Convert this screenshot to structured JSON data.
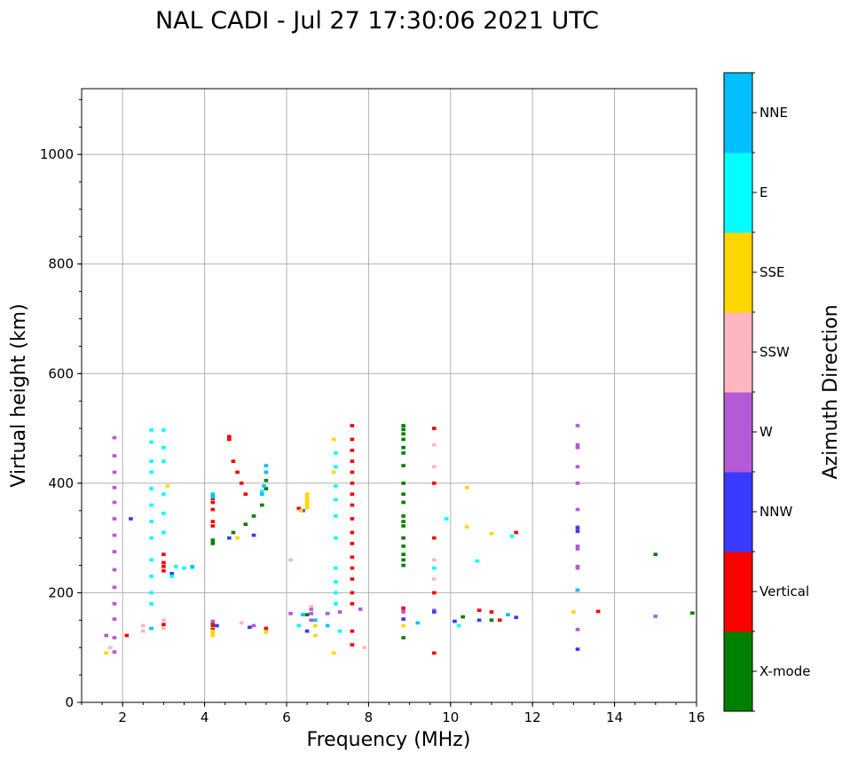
{
  "chart_data": {
    "type": "scatter",
    "title": "NAL CADI - Jul 27 17:30:06 2021 UTC",
    "xlabel": "Frequency (MHz)",
    "ylabel": "Virtual height (km)",
    "xlim": [
      1,
      16
    ],
    "ylim": [
      0,
      1120
    ],
    "xticks": [
      "2",
      "4",
      "6",
      "8",
      "10",
      "12",
      "14",
      "16"
    ],
    "yticks": [
      "0",
      "200",
      "400",
      "600",
      "800",
      "1000"
    ],
    "grid": true,
    "colorbar": {
      "title": "Azimuth Direction",
      "categories": [
        {
          "name": "X-mode",
          "color": "#008000"
        },
        {
          "name": "Vertical",
          "color": "#ff0000"
        },
        {
          "name": "NNW",
          "color": "#3a3aff"
        },
        {
          "name": "W",
          "color": "#b45ad6"
        },
        {
          "name": "SSW",
          "color": "#ffb6c1"
        },
        {
          "name": "SSE",
          "color": "#ffd700"
        },
        {
          "name": "E",
          "color": "#00ffff"
        },
        {
          "name": "NNE",
          "color": "#00bfff"
        }
      ]
    },
    "series": [
      {
        "name": "W",
        "points": [
          [
            1.8,
            483
          ],
          [
            1.8,
            450
          ],
          [
            1.8,
            420
          ],
          [
            1.8,
            392
          ],
          [
            1.8,
            365
          ],
          [
            1.8,
            335
          ],
          [
            1.8,
            305
          ],
          [
            1.8,
            275
          ],
          [
            1.8,
            242
          ],
          [
            1.8,
            210
          ],
          [
            1.8,
            180
          ],
          [
            1.8,
            152
          ],
          [
            1.8,
            118
          ],
          [
            1.8,
            92
          ],
          [
            1.6,
            122
          ],
          [
            6.1,
            162
          ],
          [
            6.6,
            170
          ],
          [
            6.6,
            162
          ],
          [
            6.6,
            150
          ],
          [
            7.0,
            162
          ],
          [
            7.3,
            165
          ],
          [
            7.8,
            170
          ],
          [
            8.85,
            165
          ],
          [
            8.85,
            170
          ],
          [
            9.6,
            168
          ],
          [
            13.1,
            505
          ],
          [
            13.1,
            470
          ],
          [
            13.1,
            465
          ],
          [
            13.1,
            430
          ],
          [
            13.1,
            400
          ],
          [
            13.1,
            352
          ],
          [
            13.1,
            320
          ],
          [
            13.1,
            285
          ],
          [
            13.1,
            280
          ],
          [
            13.1,
            248
          ],
          [
            13.1,
            245
          ],
          [
            13.1,
            205
          ],
          [
            13.1,
            133
          ],
          [
            15.0,
            157
          ],
          [
            4.2,
            148
          ],
          [
            5.2,
            140
          ]
        ]
      },
      {
        "name": "X-mode",
        "points": [
          [
            8.85,
            505
          ],
          [
            8.85,
            498
          ],
          [
            8.85,
            490
          ],
          [
            8.85,
            480
          ],
          [
            8.85,
            465
          ],
          [
            8.85,
            455
          ],
          [
            8.85,
            432
          ],
          [
            8.85,
            400
          ],
          [
            8.85,
            380
          ],
          [
            8.85,
            365
          ],
          [
            8.85,
            340
          ],
          [
            8.85,
            330
          ],
          [
            8.85,
            322
          ],
          [
            8.85,
            300
          ],
          [
            8.85,
            285
          ],
          [
            8.85,
            270
          ],
          [
            8.85,
            260
          ],
          [
            8.85,
            250
          ],
          [
            8.85,
            118
          ],
          [
            15.0,
            270
          ],
          [
            15.9,
            163
          ],
          [
            4.2,
            296
          ],
          [
            4.2,
            290
          ],
          [
            4.7,
            310
          ],
          [
            5.0,
            325
          ],
          [
            5.2,
            340
          ],
          [
            5.4,
            360
          ],
          [
            5.5,
            390
          ],
          [
            5.5,
            405
          ],
          [
            10.3,
            156
          ],
          [
            11.0,
            150
          ],
          [
            6.5,
            160
          ],
          [
            4.2,
            140
          ]
        ]
      },
      {
        "name": "Vertical",
        "points": [
          [
            4.2,
            330
          ],
          [
            4.2,
            322
          ],
          [
            4.2,
            352
          ],
          [
            4.2,
            365
          ],
          [
            4.2,
            372
          ],
          [
            4.2,
            142
          ],
          [
            4.2,
            133
          ],
          [
            3.0,
            248
          ],
          [
            3.0,
            240
          ],
          [
            3.0,
            255
          ],
          [
            3.0,
            270
          ],
          [
            4.6,
            480
          ],
          [
            4.6,
            485
          ],
          [
            4.7,
            440
          ],
          [
            4.8,
            420
          ],
          [
            4.9,
            400
          ],
          [
            5.0,
            380
          ],
          [
            7.6,
            505
          ],
          [
            7.6,
            480
          ],
          [
            7.6,
            460
          ],
          [
            7.6,
            440
          ],
          [
            7.6,
            420
          ],
          [
            7.6,
            400
          ],
          [
            7.6,
            380
          ],
          [
            7.6,
            360
          ],
          [
            7.6,
            335
          ],
          [
            7.6,
            310
          ],
          [
            7.6,
            290
          ],
          [
            7.6,
            265
          ],
          [
            7.6,
            245
          ],
          [
            7.6,
            225
          ],
          [
            7.6,
            200
          ],
          [
            7.6,
            180
          ],
          [
            7.6,
            130
          ],
          [
            7.6,
            105
          ],
          [
            9.6,
            500
          ],
          [
            9.6,
            400
          ],
          [
            9.6,
            300
          ],
          [
            9.6,
            200
          ],
          [
            9.6,
            90
          ],
          [
            10.7,
            168
          ],
          [
            11.0,
            165
          ],
          [
            11.2,
            150
          ],
          [
            11.6,
            310
          ],
          [
            8.85,
            172
          ],
          [
            13.6,
            166
          ],
          [
            3.0,
            142
          ],
          [
            5.5,
            135
          ],
          [
            2.1,
            122
          ],
          [
            6.3,
            354
          ]
        ]
      },
      {
        "name": "NNW",
        "points": [
          [
            13.1,
            97
          ],
          [
            13.1,
            318
          ],
          [
            13.1,
            312
          ],
          [
            3.2,
            235
          ],
          [
            2.2,
            335
          ],
          [
            4.3,
            140
          ],
          [
            5.1,
            137
          ],
          [
            6.5,
            130
          ],
          [
            8.85,
            152
          ],
          [
            9.6,
            165
          ],
          [
            10.1,
            148
          ],
          [
            10.7,
            150
          ],
          [
            11.6,
            155
          ],
          [
            4.6,
            300
          ],
          [
            5.2,
            305
          ],
          [
            6.4,
            350
          ]
        ]
      },
      {
        "name": "SSE",
        "points": [
          [
            6.5,
            380
          ],
          [
            6.5,
            375
          ],
          [
            6.5,
            370
          ],
          [
            6.5,
            365
          ],
          [
            6.5,
            360
          ],
          [
            6.5,
            355
          ],
          [
            6.35,
            350
          ],
          [
            4.2,
            125
          ],
          [
            4.2,
            122
          ],
          [
            4.2,
            130
          ],
          [
            5.5,
            128
          ],
          [
            6.7,
            122
          ],
          [
            6.7,
            140
          ],
          [
            7.15,
            90
          ],
          [
            7.15,
            480
          ],
          [
            7.15,
            420
          ],
          [
            13.0,
            165
          ],
          [
            8.85,
            140
          ],
          [
            10.4,
            392
          ],
          [
            10.4,
            320
          ],
          [
            11.0,
            308
          ],
          [
            3.1,
            395
          ],
          [
            1.6,
            90
          ],
          [
            4.8,
            300
          ]
        ]
      },
      {
        "name": "E",
        "points": [
          [
            2.7,
            497
          ],
          [
            2.7,
            475
          ],
          [
            2.7,
            440
          ],
          [
            2.7,
            420
          ],
          [
            2.7,
            390
          ],
          [
            2.7,
            360
          ],
          [
            2.7,
            330
          ],
          [
            2.7,
            300
          ],
          [
            2.7,
            260
          ],
          [
            2.7,
            230
          ],
          [
            2.7,
            200
          ],
          [
            2.7,
            180
          ],
          [
            3.0,
            497
          ],
          [
            3.0,
            465
          ],
          [
            3.0,
            440
          ],
          [
            3.0,
            380
          ],
          [
            3.0,
            345
          ],
          [
            3.0,
            310
          ],
          [
            3.3,
            248
          ],
          [
            3.5,
            245
          ],
          [
            3.7,
            246
          ],
          [
            3.2,
            230
          ],
          [
            7.3,
            130
          ],
          [
            6.3,
            140
          ],
          [
            7.2,
            455
          ],
          [
            7.2,
            430
          ],
          [
            7.2,
            395
          ],
          [
            7.2,
            370
          ],
          [
            7.2,
            340
          ],
          [
            7.2,
            300
          ],
          [
            7.2,
            245
          ],
          [
            7.2,
            220
          ],
          [
            7.2,
            200
          ],
          [
            7.2,
            180
          ],
          [
            10.65,
            258
          ],
          [
            11.5,
            303
          ],
          [
            10.2,
            140
          ],
          [
            9.9,
            335
          ],
          [
            9.6,
            245
          ],
          [
            5.5,
            420
          ],
          [
            5.4,
            385
          ]
        ]
      },
      {
        "name": "NNE",
        "points": [
          [
            5.5,
            432
          ],
          [
            5.5,
            420
          ],
          [
            5.45,
            395
          ],
          [
            5.4,
            380
          ],
          [
            4.2,
            380
          ],
          [
            4.2,
            375
          ],
          [
            3.7,
            248
          ],
          [
            6.4,
            160
          ],
          [
            6.7,
            150
          ],
          [
            7.0,
            140
          ],
          [
            11.4,
            160
          ],
          [
            13.1,
            205
          ],
          [
            9.2,
            145
          ],
          [
            2.7,
            135
          ]
        ]
      },
      {
        "name": "SSW",
        "points": [
          [
            3.0,
            150
          ],
          [
            3.0,
            135
          ],
          [
            2.5,
            140
          ],
          [
            2.5,
            130
          ],
          [
            4.9,
            145
          ],
          [
            6.1,
            260
          ],
          [
            7.9,
            100
          ],
          [
            9.6,
            470
          ],
          [
            9.6,
            430
          ],
          [
            9.6,
            260
          ],
          [
            9.6,
            225
          ],
          [
            6.6,
            175
          ],
          [
            1.7,
            100
          ]
        ]
      }
    ]
  }
}
